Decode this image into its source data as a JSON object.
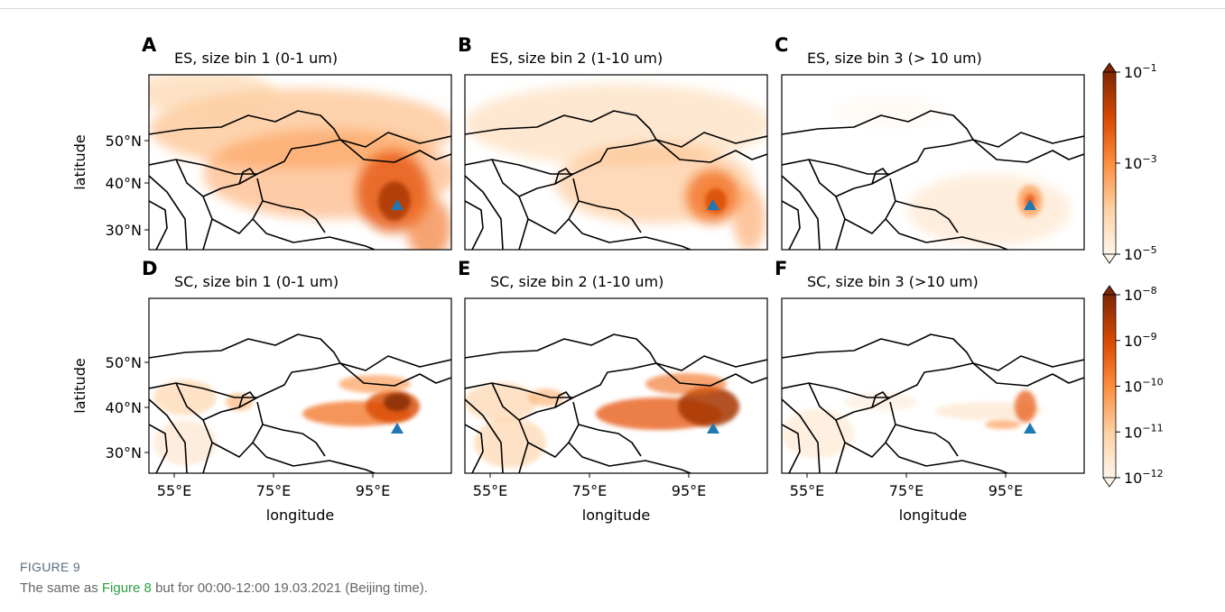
{
  "figure": {
    "panels": [
      {
        "letter": "A",
        "title": "ES, size bin 1 (0-1 um)"
      },
      {
        "letter": "B",
        "title": "ES, size bin 2 (1-10 um)"
      },
      {
        "letter": "C",
        "title": "ES, size bin 3 (> 10 um)"
      },
      {
        "letter": "D",
        "title": "SC, size bin 1 (0-1 um)"
      },
      {
        "letter": "E",
        "title": "SC, size bin 2 (1-10 um)"
      },
      {
        "letter": "F",
        "title": "SC, size bin 3 (>10 um)"
      }
    ],
    "y_axis": {
      "label": "latitude",
      "ticks": [
        "50°N",
        "40°N",
        "30°N"
      ]
    },
    "x_axis": {
      "label": "longitude",
      "ticks": [
        "55°E",
        "75°E",
        "95°E"
      ]
    },
    "colorbars": [
      {
        "ticks": [
          {
            "base": "10",
            "exp": "−1"
          },
          {
            "base": "10",
            "exp": "−3"
          },
          {
            "base": "10",
            "exp": "−5"
          }
        ]
      },
      {
        "ticks": [
          {
            "base": "10",
            "exp": "−8"
          },
          {
            "base": "10",
            "exp": "−9"
          },
          {
            "base": "10",
            "exp": "−10"
          },
          {
            "base": "10",
            "exp": "−11"
          },
          {
            "base": "10",
            "exp": "−12"
          }
        ]
      }
    ],
    "label": "FIGURE 9",
    "caption": {
      "before": "The same as ",
      "link": "Figure 8",
      "after": " but for 00:00-12:00 19.03.2021 (Beijing time)."
    }
  }
}
